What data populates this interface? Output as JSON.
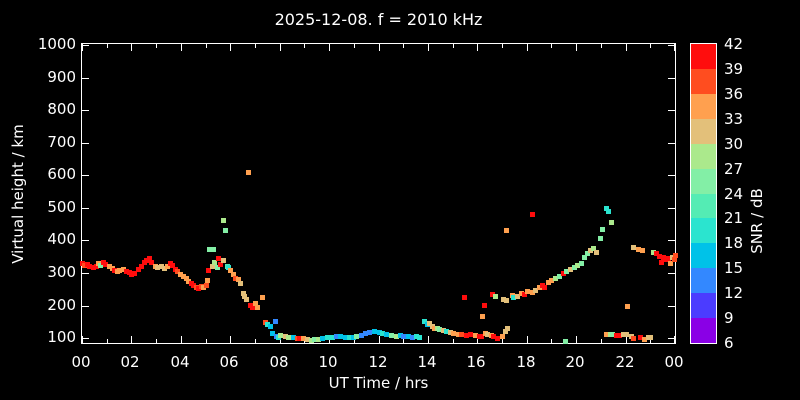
{
  "title": "2025-12-08. f = 2010 kHz",
  "axes": {
    "x": {
      "label": "UT Time / hrs",
      "tick_labels": [
        "00",
        "02",
        "04",
        "06",
        "08",
        "10",
        "12",
        "14",
        "16",
        "18",
        "20",
        "22",
        "00"
      ],
      "tick_hours": [
        0,
        2,
        4,
        6,
        8,
        10,
        12,
        14,
        16,
        18,
        20,
        22,
        24
      ],
      "minor_hours": [
        1,
        3,
        5,
        7,
        9,
        11,
        13,
        15,
        17,
        19,
        21,
        23
      ],
      "range_hours": [
        0,
        24
      ]
    },
    "y": {
      "label": "Virtual height / km",
      "tick_values": [
        100,
        200,
        300,
        400,
        500,
        600,
        700,
        800,
        900,
        1000
      ],
      "range_km": [
        85,
        1003
      ]
    }
  },
  "colorbar": {
    "label": "SNR / dB",
    "tick_labels": [
      42,
      39,
      36,
      33,
      30,
      27,
      24,
      21,
      18,
      15,
      12,
      9,
      6
    ],
    "min": 6,
    "max": 42,
    "step": 3,
    "segment_colors_bottom_to_top": [
      "#8a00e6",
      "#4b3cff",
      "#3388ff",
      "#00c2e8",
      "#2be4cf",
      "#54ecb4",
      "#83efa6",
      "#abe98c",
      "#e3c07a",
      "#ffa04f",
      "#ff4d1f",
      "#ff0d0d"
    ]
  },
  "chart_data": {
    "type": "scatter",
    "title": "2025-12-08. f = 2010 kHz",
    "xlabel": "UT Time / hrs",
    "ylabel": "Virtual height / km",
    "color_label": "SNR / dB",
    "xlim": [
      0,
      24
    ],
    "ylim": [
      100,
      1000
    ],
    "grid": false,
    "legend": "colorbar-right",
    "point_format": "[ut_hours, virtual_height_km, snr_db]",
    "series": [
      {
        "name": "ionosonde-echoes",
        "points": [
          [
            0.0,
            332,
            40
          ],
          [
            0.1,
            325,
            37
          ],
          [
            0.2,
            328,
            40
          ],
          [
            0.3,
            322,
            40
          ],
          [
            0.45,
            318,
            40
          ],
          [
            0.55,
            322,
            40
          ],
          [
            0.65,
            330,
            34
          ],
          [
            0.72,
            324,
            26
          ],
          [
            0.85,
            333,
            40
          ],
          [
            0.95,
            328,
            40
          ],
          [
            1.1,
            322,
            34
          ],
          [
            1.2,
            315,
            34
          ],
          [
            1.3,
            310,
            40
          ],
          [
            1.4,
            306,
            34
          ],
          [
            1.5,
            310,
            34
          ],
          [
            1.65,
            312,
            34
          ],
          [
            1.8,
            306,
            40
          ],
          [
            1.9,
            303,
            40
          ],
          [
            2.0,
            298,
            40
          ],
          [
            2.1,
            300,
            40
          ],
          [
            2.25,
            312,
            40
          ],
          [
            2.4,
            322,
            40
          ],
          [
            2.5,
            334,
            40
          ],
          [
            2.6,
            340,
            40
          ],
          [
            2.7,
            346,
            40
          ],
          [
            2.8,
            334,
            40
          ],
          [
            2.95,
            322,
            34
          ],
          [
            3.05,
            318,
            31
          ],
          [
            3.2,
            322,
            31
          ],
          [
            3.3,
            315,
            31
          ],
          [
            3.45,
            322,
            34
          ],
          [
            3.55,
            330,
            40
          ],
          [
            3.65,
            325,
            40
          ],
          [
            3.75,
            312,
            40
          ],
          [
            3.85,
            305,
            37
          ],
          [
            3.95,
            298,
            34
          ],
          [
            4.1,
            292,
            34
          ],
          [
            4.2,
            284,
            34
          ],
          [
            4.3,
            276,
            34
          ],
          [
            4.4,
            268,
            40
          ],
          [
            4.5,
            262,
            40
          ],
          [
            4.6,
            258,
            37
          ],
          [
            4.7,
            255,
            40
          ],
          [
            4.8,
            260,
            37
          ],
          [
            4.9,
            258,
            34
          ],
          [
            5.0,
            262,
            37
          ],
          [
            5.05,
            278,
            34
          ],
          [
            5.1,
            308,
            40
          ],
          [
            5.15,
            373,
            26
          ],
          [
            5.3,
            373,
            26
          ],
          [
            5.25,
            320,
            31
          ],
          [
            5.35,
            335,
            28
          ],
          [
            5.45,
            318,
            26
          ],
          [
            5.5,
            346,
            40
          ],
          [
            5.6,
            328,
            40
          ],
          [
            5.7,
            340,
            31
          ],
          [
            5.7,
            464,
            28
          ],
          [
            5.8,
            433,
            26
          ],
          [
            5.85,
            322,
            23
          ],
          [
            5.9,
            318,
            20
          ],
          [
            6.0,
            310,
            34
          ],
          [
            6.1,
            297,
            34
          ],
          [
            6.2,
            285,
            37
          ],
          [
            6.3,
            280,
            34
          ],
          [
            6.4,
            268,
            31
          ],
          [
            6.5,
            240,
            31
          ],
          [
            6.55,
            228,
            31
          ],
          [
            6.65,
            220,
            31
          ],
          [
            6.73,
            610,
            34
          ],
          [
            6.8,
            202,
            40
          ],
          [
            6.9,
            197,
            40
          ],
          [
            7.0,
            208,
            34
          ],
          [
            7.1,
            194,
            34
          ],
          [
            7.28,
            226,
            34
          ],
          [
            7.4,
            148,
            37
          ],
          [
            7.5,
            142,
            20
          ],
          [
            7.6,
            138,
            17
          ],
          [
            7.7,
            116,
            17
          ],
          [
            7.8,
            152,
            13
          ],
          [
            7.85,
            108,
            13
          ],
          [
            7.92,
            104,
            20
          ],
          [
            8.0,
            109,
            28
          ],
          [
            8.2,
            107,
            31
          ],
          [
            8.35,
            104,
            28
          ],
          [
            8.55,
            104,
            17
          ],
          [
            8.7,
            101,
            37
          ],
          [
            8.8,
            101,
            40
          ],
          [
            8.95,
            101,
            34
          ],
          [
            9.1,
            98,
            31
          ],
          [
            9.25,
            95,
            28
          ],
          [
            9.4,
            98,
            26
          ],
          [
            9.55,
            98,
            28
          ],
          [
            9.7,
            101,
            17
          ],
          [
            9.9,
            104,
            20
          ],
          [
            10.1,
            104,
            20
          ],
          [
            10.3,
            107,
            13
          ],
          [
            10.45,
            107,
            17
          ],
          [
            10.65,
            104,
            17
          ],
          [
            10.8,
            104,
            20
          ],
          [
            10.95,
            104,
            17
          ],
          [
            11.1,
            107,
            26
          ],
          [
            11.3,
            110,
            13
          ],
          [
            11.45,
            116,
            13
          ],
          [
            11.6,
            119,
            13
          ],
          [
            11.8,
            122,
            15
          ],
          [
            12.0,
            119,
            17
          ],
          [
            12.15,
            116,
            20
          ],
          [
            12.3,
            113,
            17
          ],
          [
            12.5,
            110,
            26
          ],
          [
            12.7,
            107,
            28
          ],
          [
            12.85,
            110,
            17
          ],
          [
            13.0,
            107,
            13
          ],
          [
            13.2,
            107,
            17
          ],
          [
            13.35,
            104,
            13
          ],
          [
            13.5,
            107,
            20
          ],
          [
            13.65,
            104,
            20
          ],
          [
            13.85,
            152,
            20
          ],
          [
            13.95,
            142,
            17
          ],
          [
            14.05,
            146,
            31
          ],
          [
            14.15,
            136,
            31
          ],
          [
            14.25,
            131,
            34
          ],
          [
            14.35,
            131,
            28
          ],
          [
            14.45,
            128,
            26
          ],
          [
            14.6,
            125,
            31
          ],
          [
            14.75,
            122,
            20
          ],
          [
            14.9,
            119,
            31
          ],
          [
            15.0,
            116,
            34
          ],
          [
            15.2,
            113,
            34
          ],
          [
            15.35,
            113,
            37
          ],
          [
            15.55,
            110,
            40
          ],
          [
            15.7,
            113,
            40
          ],
          [
            15.9,
            110,
            34
          ],
          [
            16.05,
            107,
            40
          ],
          [
            16.15,
            107,
            40
          ],
          [
            16.3,
            116,
            34
          ],
          [
            16.4,
            113,
            31
          ],
          [
            16.55,
            110,
            34
          ],
          [
            16.65,
            107,
            40
          ],
          [
            16.8,
            101,
            40
          ],
          [
            17.0,
            107,
            34
          ],
          [
            17.1,
            122,
            31
          ],
          [
            17.2,
            131,
            31
          ],
          [
            15.45,
            226,
            40
          ],
          [
            16.25,
            202,
            40
          ],
          [
            16.2,
            167,
            34
          ],
          [
            16.6,
            236,
            40
          ],
          [
            19.55,
            92,
            26
          ],
          [
            16.7,
            229,
            28
          ],
          [
            17.05,
            221,
            31
          ],
          [
            17.15,
            218,
            31
          ],
          [
            17.14,
            432,
            34
          ],
          [
            17.4,
            233,
            34
          ],
          [
            17.46,
            227,
            20
          ],
          [
            17.6,
            230,
            31
          ],
          [
            17.75,
            239,
            34
          ],
          [
            17.9,
            236,
            40
          ],
          [
            18.0,
            245,
            34
          ],
          [
            18.2,
            242,
            34
          ],
          [
            18.23,
            482,
            40
          ],
          [
            18.35,
            248,
            31
          ],
          [
            18.5,
            256,
            34
          ],
          [
            18.6,
            262,
            40
          ],
          [
            18.7,
            256,
            40
          ],
          [
            18.85,
            272,
            34
          ],
          [
            19.0,
            278,
            34
          ],
          [
            19.15,
            284,
            28
          ],
          [
            19.3,
            291,
            26
          ],
          [
            19.45,
            300,
            40
          ],
          [
            19.6,
            306,
            26
          ],
          [
            19.75,
            312,
            31
          ],
          [
            19.9,
            318,
            26
          ],
          [
            20.05,
            324,
            28
          ],
          [
            20.2,
            332,
            26
          ],
          [
            20.3,
            349,
            26
          ],
          [
            20.45,
            361,
            26
          ],
          [
            20.55,
            370,
            31
          ],
          [
            20.7,
            376,
            28
          ],
          [
            20.8,
            364,
            31
          ],
          [
            20.95,
            406,
            26
          ],
          [
            21.05,
            436,
            26
          ],
          [
            21.2,
            500,
            20
          ],
          [
            21.28,
            491,
            20
          ],
          [
            21.4,
            458,
            28
          ],
          [
            21.2,
            112,
            34
          ],
          [
            21.35,
            112,
            28
          ],
          [
            21.45,
            112,
            26
          ],
          [
            21.6,
            109,
            40
          ],
          [
            21.72,
            109,
            40
          ],
          [
            21.88,
            112,
            31
          ],
          [
            22.0,
            112,
            31
          ],
          [
            22.2,
            106,
            31
          ],
          [
            22.32,
            101,
            37
          ],
          [
            22.6,
            104,
            40
          ],
          [
            22.75,
            98,
            34
          ],
          [
            22.9,
            104,
            31
          ],
          [
            23.0,
            104,
            31
          ],
          [
            22.05,
            198,
            34
          ],
          [
            22.3,
            379,
            31
          ],
          [
            22.5,
            374,
            34
          ],
          [
            22.65,
            371,
            34
          ],
          [
            23.1,
            365,
            28
          ],
          [
            23.25,
            361,
            40
          ],
          [
            23.35,
            353,
            40
          ],
          [
            23.45,
            335,
            40
          ],
          [
            23.5,
            350,
            40
          ],
          [
            23.6,
            344,
            40
          ],
          [
            23.72,
            347,
            40
          ],
          [
            23.8,
            332,
            34
          ],
          [
            23.88,
            350,
            31
          ],
          [
            23.95,
            344,
            37
          ],
          [
            23.98,
            356,
            37
          ]
        ]
      }
    ]
  }
}
